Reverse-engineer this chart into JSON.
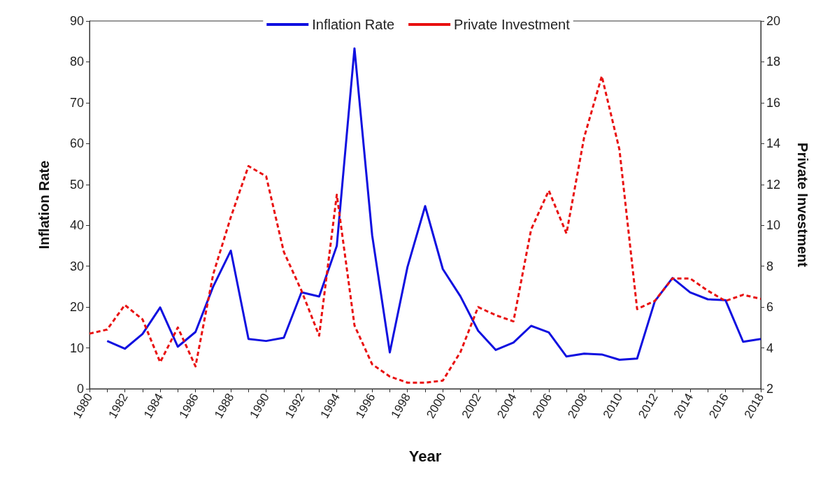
{
  "chart_data": {
    "type": "line",
    "xlabel": "Year",
    "ylabel": "Inflation Rate",
    "y2label": "Private Investment",
    "categories": [
      "1980",
      null,
      "1982",
      null,
      "1984",
      null,
      "1986",
      null,
      "1988",
      null,
      "1990",
      null,
      "1992",
      null,
      "1994",
      null,
      "1996",
      null,
      "1998",
      null,
      "2000",
      null,
      "2002",
      null,
      "2004",
      null,
      "2006",
      null,
      "2008",
      null,
      "2010",
      null,
      "2012",
      null,
      "2014",
      null,
      "2016",
      null,
      "2018"
    ],
    "series": [
      {
        "name": "Inflation Rate",
        "color": "#1010e0",
        "line_style": "solid",
        "values": [
          null,
          11.7,
          9.8,
          13.4,
          19.9,
          10.3,
          13.9,
          25,
          33.8,
          12.2,
          11.7,
          12.5,
          23.6,
          22.6,
          35,
          83.3,
          37.6,
          8.9,
          29.8,
          44.7,
          29.3,
          22.6,
          14.2,
          9.5,
          11.3,
          15.4,
          13.8,
          7.9,
          8.6,
          8.4,
          7.1,
          7.4,
          21.4,
          27.1,
          23.6,
          21.9,
          21.7,
          11.5,
          12.2
        ]
      },
      {
        "name": "Private Investment",
        "color": "#e81010",
        "line_style": "dashed",
        "axis": "y2",
        "values": [
          4.7,
          4.9,
          6.1,
          5.4,
          3.3,
          5,
          3.1,
          7.6,
          10.4,
          12.9,
          12.4,
          8.7,
          6.8,
          4.6,
          11.5,
          5.1,
          3.2,
          2.6,
          2.3,
          2.3,
          2.4,
          3.8,
          6,
          5.6,
          5.3,
          9.8,
          11.7,
          9.6,
          14.3,
          17.3,
          13.7,
          5.9,
          6.3,
          7.4,
          7.4,
          6.8,
          6.3,
          6.6,
          6.4
        ]
      }
    ],
    "ylim": [
      0,
      90
    ],
    "yticks": [
      0,
      10,
      20,
      30,
      40,
      50,
      60,
      70,
      80,
      90
    ],
    "y2lim": [
      2,
      20
    ],
    "y2ticks": [
      2,
      4,
      6,
      8,
      10,
      12,
      14,
      16,
      18,
      20
    ],
    "grid": false,
    "legend": "top",
    "marker": "none"
  }
}
